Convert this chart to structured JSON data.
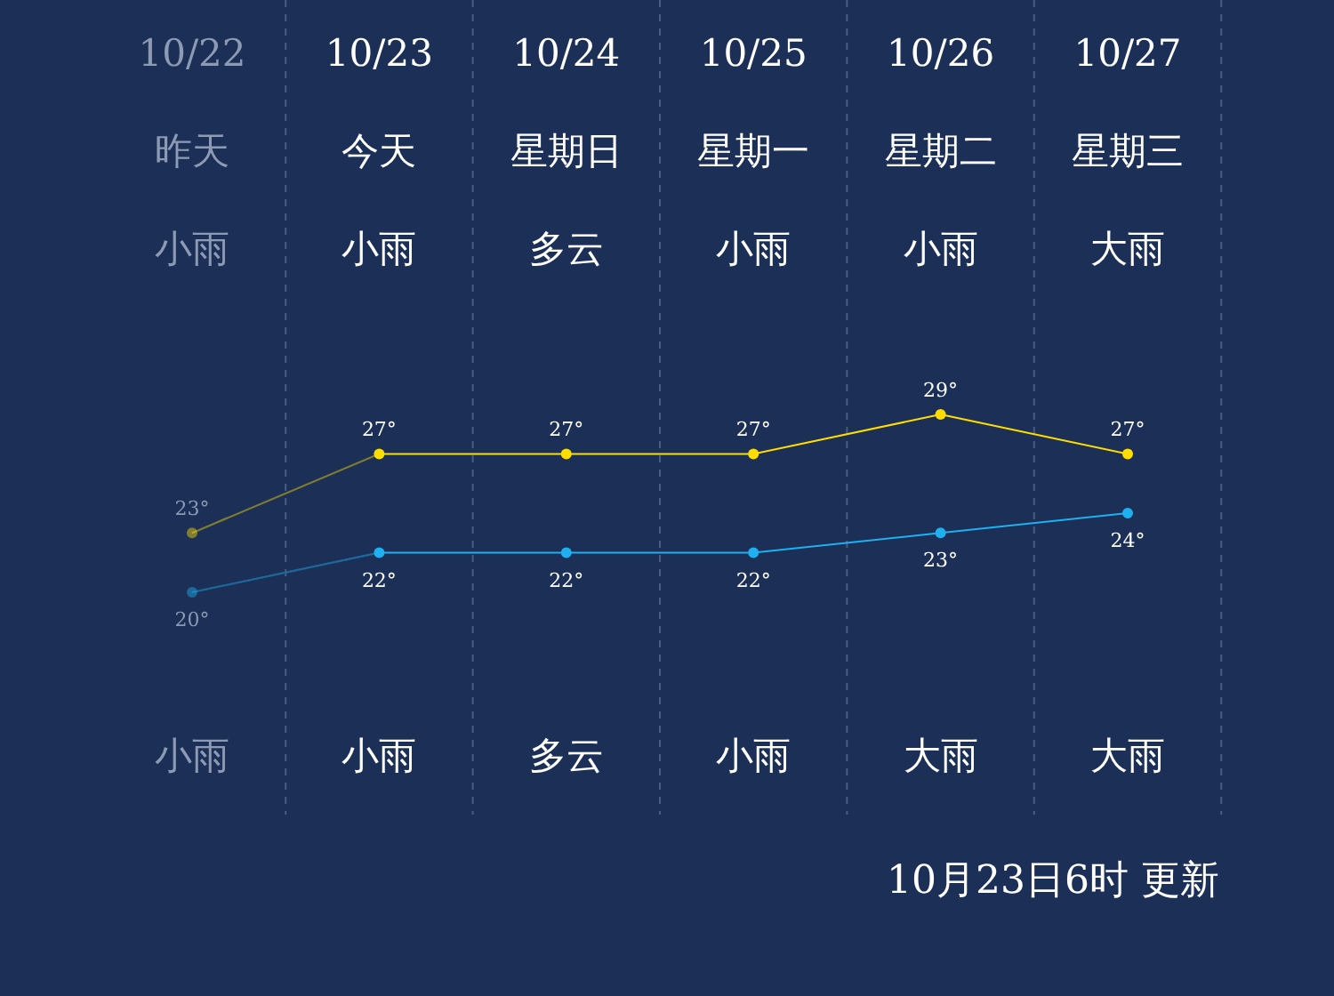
{
  "chart_data": {
    "type": "line",
    "categories": [
      "10/22",
      "10/23",
      "10/24",
      "10/25",
      "10/26",
      "10/27"
    ],
    "series": [
      {
        "color": "#ffdd00",
        "values": [
          23,
          27,
          27,
          27,
          29,
          27
        ],
        "value_labels": [
          "23°",
          "27°",
          "27°",
          "27°",
          "29°",
          "27°"
        ]
      },
      {
        "color": "#1fb0f0",
        "values": [
          20,
          22,
          22,
          22,
          23,
          24
        ],
        "value_labels": [
          "20°",
          "22°",
          "22°",
          "22°",
          "23°",
          "24°"
        ]
      }
    ],
    "marker": "circle",
    "grid": "x",
    "annotations": [
      "昨天",
      "今天",
      "星期日",
      "星期一",
      "星期二",
      "星期三",
      "小雨",
      "小雨",
      "多云",
      "小雨",
      "小雨",
      "大雨",
      "小雨",
      "小雨",
      "多云",
      "小雨",
      "大雨",
      "大雨",
      "10月23日6时 更新"
    ]
  }
}
